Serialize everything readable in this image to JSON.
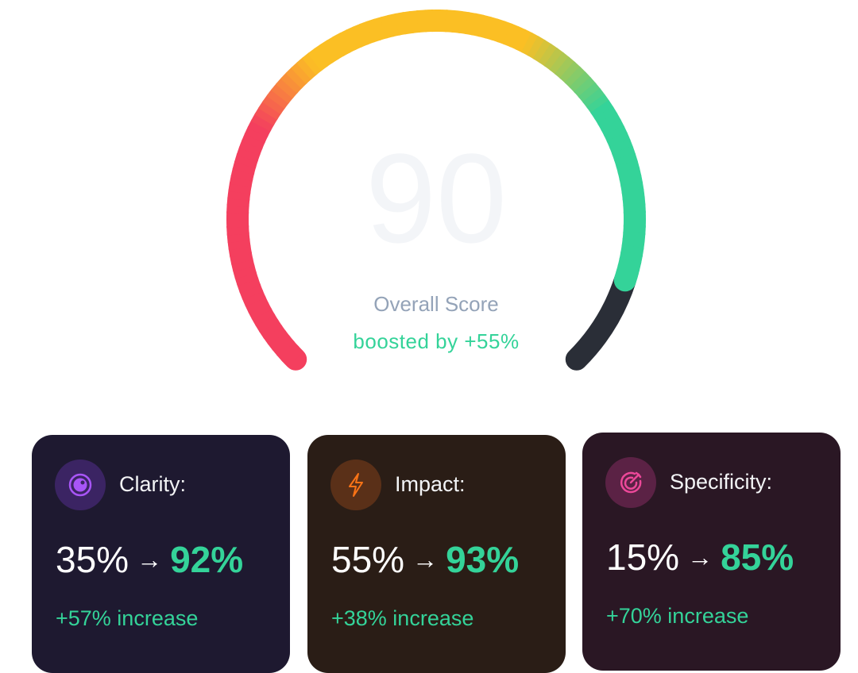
{
  "gauge": {
    "score": "90",
    "value": 90,
    "max": 100,
    "label": "Overall Score",
    "boost_text": "boosted by +55%",
    "colors": {
      "low": "#F43F5E",
      "mid": "#FBBF24",
      "high": "#34D399",
      "remaining": "#2A2E37"
    }
  },
  "cards": [
    {
      "title": "Clarity:",
      "icon": "eye-icon",
      "before": "35%",
      "arrow": "→",
      "after": "92%",
      "increase": "+57% increase",
      "bg": "#1E1930",
      "icon_bg": "#3B2463",
      "icon_color": "#A855F7"
    },
    {
      "title": "Impact:",
      "icon": "lightning-icon",
      "before": "55%",
      "arrow": "→",
      "after": "93%",
      "increase": "+38% increase",
      "bg": "#2A1D16",
      "icon_bg": "#5A3018",
      "icon_color": "#F97316"
    },
    {
      "title": "Specificity:",
      "icon": "target-icon",
      "before": "15%",
      "arrow": "→",
      "after": "85%",
      "increase": "+70% increase",
      "bg": "#2A1724",
      "icon_bg": "#5B2245",
      "icon_color": "#EC4899"
    }
  ]
}
